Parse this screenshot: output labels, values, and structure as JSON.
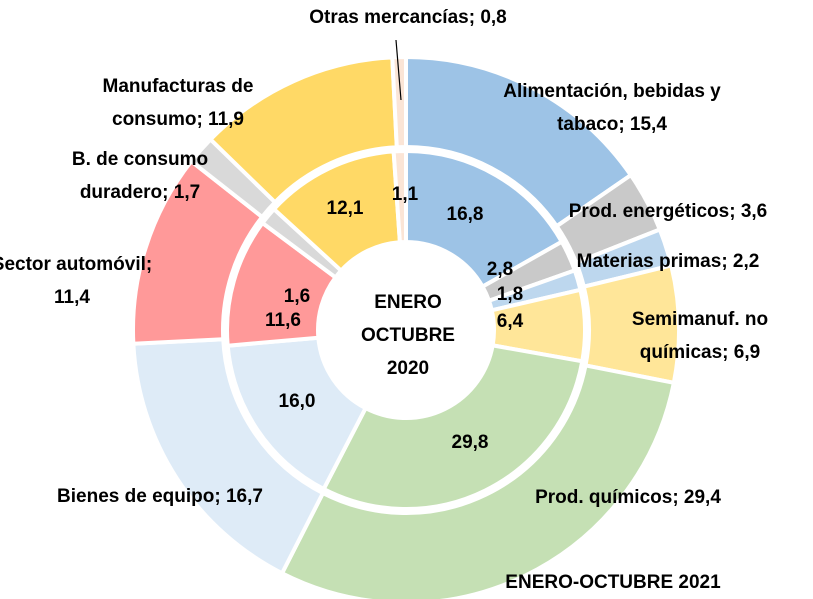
{
  "chart_data": {
    "type": "donut",
    "colors": [
      "#9dc3e6",
      "#c9c9c9",
      "#bdd7ee",
      "#ffe699",
      "#c5e0b4",
      "#deebf7",
      "#ff9999",
      "#d9d9d9",
      "#ffd966",
      "#fbe5d6"
    ],
    "series": [
      {
        "name": "ENERO-OCTUBRE 2021",
        "values": [
          15.4,
          3.6,
          2.2,
          6.9,
          29.4,
          16.7,
          11.4,
          1.7,
          11.9,
          0.8
        ],
        "value_labels": [
          [
            "Alimentación, bebidas y",
            "tabaco; 15,4"
          ],
          [
            "Prod. energéticos; 3,6"
          ],
          [
            "Materias primas; 2,2"
          ],
          [
            "Semimanuf. no",
            "químicas; 6,9"
          ],
          [
            "Prod. químicos; 29,4"
          ],
          [
            "Bienes de equipo; 16,7"
          ],
          [
            "Sector automóvil;",
            "11,4"
          ],
          [
            "B. de consumo",
            "duradero; 1,7"
          ],
          [
            "Manufacturas de",
            "consumo; 11,9"
          ],
          [
            "Otras mercancías; 0,8"
          ]
        ]
      },
      {
        "name": "ENERO OCTUBRE 2020",
        "values": [
          16.8,
          2.8,
          1.8,
          6.4,
          29.8,
          16.0,
          11.6,
          1.6,
          12.1,
          1.1
        ],
        "value_labels": [
          "16,8",
          "2,8",
          "1,8",
          "6,4",
          "29,8",
          "16,0",
          "11,6",
          "1,6",
          "12,1",
          "1,1"
        ]
      }
    ]
  }
}
